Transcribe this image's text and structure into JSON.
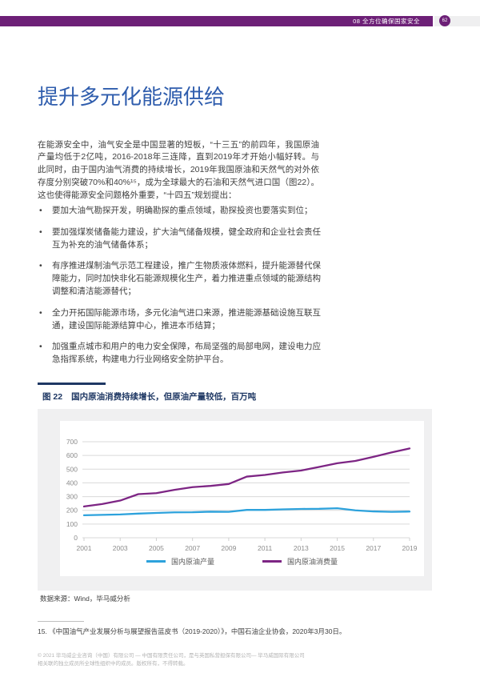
{
  "header": {
    "section_label": "08  全方位确保国家安全",
    "page_number": "62"
  },
  "title": "提升多元化能源供给",
  "intro_paragraph": "在能源安全中，油气安全是中国显著的短板，“十三五”的前四年，我国原油产量均低于2亿吨，2016-2018年三连降，直到2019年才开始小幅好转。与此同时，由于国内油气消费的持续增长，2019年我国原油和天然气的对外依存度分别突破70%和40%¹⁵，成为全球最大的石油和天然气进口国（图22）。这也使得能源安全问题格外重要，“十四五”规划提出：",
  "bullets": [
    "要加大油气勘探开发，明确勘探的重点领域，勘探投资也要落实到位；",
    "要加强煤炭储备能力建设，扩大油气储备规模，健全政府和企业社会责任互为补充的油气储备体系；",
    "有序推进煤制油气示范工程建设，推广生物质液体燃料，提升能源替代保障能力，同时加快非化石能源规模化生产，着力推进重点领域的能源结构调整和清洁能源替代；",
    "全力开拓国际能源市场，多元化油气进口来源，推进能源基础设施互联互通，建设国际能源结算中心，推进本币结算；",
    "加强重点城市和用户的电力安全保障，布局坚强的局部电网，建设电力应急指挥系统，构建电力行业网络安全防护平台。"
  ],
  "figure": {
    "label": "图 22",
    "caption": "国内原油消费持续增长，但原油产量较低，百万吨",
    "source": "数据来源：Wind，毕马威分析"
  },
  "chart_data": {
    "type": "line",
    "title": "国内原油消费持续增长，但原油产量较低，百万吨",
    "unit": "百万吨",
    "x": [
      2001,
      2002,
      2003,
      2004,
      2005,
      2006,
      2007,
      2008,
      2009,
      2010,
      2011,
      2012,
      2013,
      2014,
      2015,
      2016,
      2017,
      2018,
      2019
    ],
    "xticks": [
      2001,
      2003,
      2005,
      2007,
      2009,
      2011,
      2013,
      2015,
      2017,
      2019
    ],
    "ylim": [
      0,
      700
    ],
    "ytick_step": 100,
    "grid": "horizontal",
    "legend_position": "bottom",
    "series": [
      {
        "name": "国内原油产量",
        "color": "#2da2dc",
        "values": [
          164,
          167,
          170,
          176,
          181,
          185,
          186,
          190,
          189,
          203,
          203,
          207,
          210,
          211,
          215,
          200,
          192,
          189,
          191
        ]
      },
      {
        "name": "国内原油消费量",
        "color": "#7d2584",
        "values": [
          228,
          246,
          271,
          318,
          325,
          349,
          369,
          378,
          392,
          446,
          458,
          476,
          490,
          516,
          543,
          560,
          590,
          622,
          651
        ]
      }
    ]
  },
  "footnote": "15. 《中国油气产业发展分析与展望报告蓝皮书（2019-2020）》，中国石油企业协会，2020年3月30日。",
  "footer": {
    "line1": "© 2021 毕马威企业咨询（中国）有限公司 — 中国有限责任公司，是与英国私营担保有限公司— 毕马威国际有限公司",
    "line2": "相关联的独立成员所全球性组织中的成员。版权所有，不得转载。"
  },
  "colors": {
    "accent_purple": "#6d2077",
    "title_blue": "#2f5dad",
    "caption_navy": "#1f3864",
    "production_blue": "#2da2dc",
    "consumption_purple": "#7d2584"
  }
}
